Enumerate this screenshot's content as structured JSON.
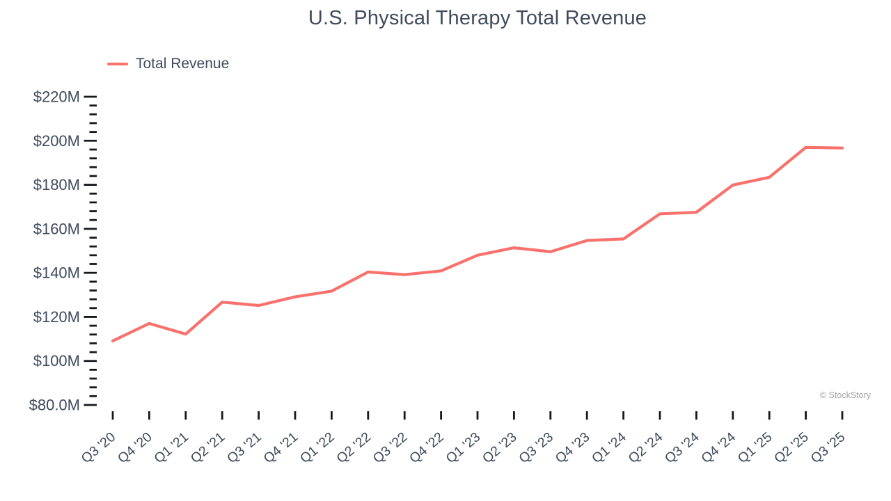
{
  "title": "U.S. Physical Therapy Total Revenue",
  "legend": {
    "label": "Total Revenue"
  },
  "watermark": "© StockStory",
  "colors": {
    "line": "#f9716c",
    "text": "#3f4b5b",
    "tick": "#15191d",
    "watermark": "#a3a3a3"
  },
  "chart_data": {
    "type": "line",
    "title": "U.S. Physical Therapy Total Revenue",
    "xlabel": "",
    "ylabel": "",
    "categories": [
      "Q3 '20",
      "Q4 '20",
      "Q1 '21",
      "Q2 '21",
      "Q3 '21",
      "Q4 '21",
      "Q1 '22",
      "Q2 '22",
      "Q3 '22",
      "Q4 '22",
      "Q1 '23",
      "Q2 '23",
      "Q3 '23",
      "Q4 '23",
      "Q1 '24",
      "Q2 '24",
      "Q3 '24",
      "Q4 '24",
      "Q1 '25",
      "Q2 '25",
      "Q3 '25"
    ],
    "series": [
      {
        "name": "Total Revenue",
        "values": [
          109.1,
          117.0,
          112.2,
          126.7,
          125.2,
          129.1,
          131.7,
          140.4,
          139.2,
          140.9,
          148.0,
          151.4,
          149.6,
          154.7,
          155.4,
          166.8,
          167.5,
          179.9,
          183.4,
          197.0,
          196.7
        ]
      }
    ],
    "unit": "$M",
    "ylim": [
      80,
      220
    ],
    "y_tick_interval": 20,
    "y_minor_tick_interval": 4,
    "y_ticks": [
      {
        "value": 80,
        "label": "$80.0M"
      },
      {
        "value": 100,
        "label": "$100M"
      },
      {
        "value": 120,
        "label": "$120M"
      },
      {
        "value": 140,
        "label": "$140M"
      },
      {
        "value": 160,
        "label": "$160M"
      },
      {
        "value": 180,
        "label": "$180M"
      },
      {
        "value": 200,
        "label": "$200M"
      },
      {
        "value": 220,
        "label": "$220M"
      }
    ],
    "grid": false,
    "legend_position": "top-left"
  }
}
